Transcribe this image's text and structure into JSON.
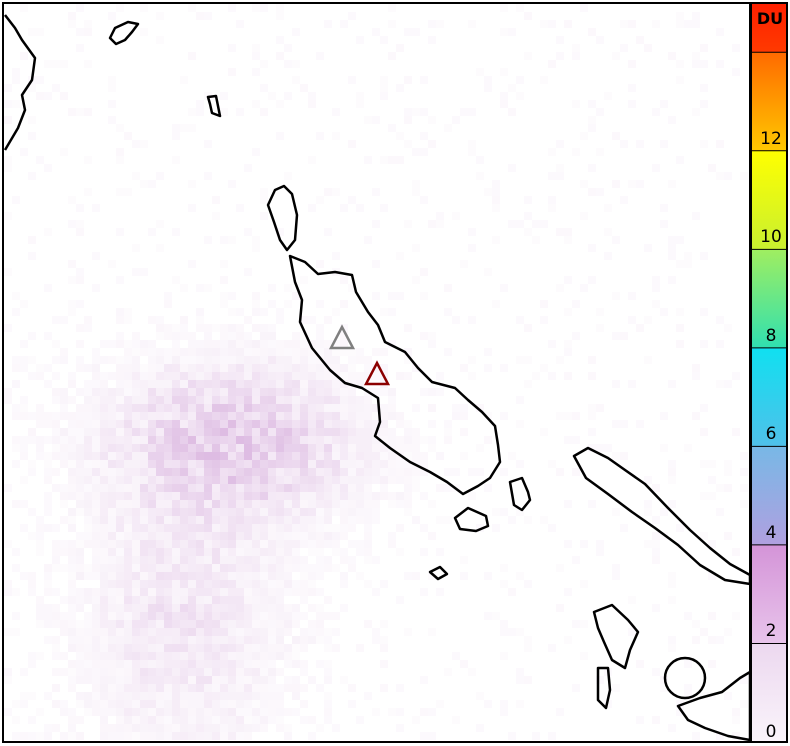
{
  "colorbar": {
    "unit": "DU",
    "ticks": [
      "0",
      "2",
      "4",
      "6",
      "8",
      "10",
      "12"
    ],
    "range": [
      0,
      15
    ],
    "segments": [
      {
        "from": 0,
        "to": 2,
        "color_top": "#ecd8ef",
        "color_bottom": "#faf4fb"
      },
      {
        "from": 2,
        "to": 4,
        "color_top": "#d494d8",
        "color_bottom": "#e8c4eb"
      },
      {
        "from": 4,
        "to": 6,
        "color_top": "#78b8e6",
        "color_bottom": "#b0a0e0"
      },
      {
        "from": 6,
        "to": 8,
        "color_top": "#10e0f0",
        "color_bottom": "#50c0ea"
      },
      {
        "from": 8,
        "to": 10,
        "color_top": "#a0ee60",
        "color_bottom": "#30e0b0"
      },
      {
        "from": 10,
        "to": 12,
        "color_top": "#ffff00",
        "color_bottom": "#c8f030"
      },
      {
        "from": 12,
        "to": 14,
        "color_top": "#ff6a00",
        "color_bottom": "#ffc800"
      },
      {
        "from": 14,
        "to": 15,
        "color_top": "#ff2000",
        "color_bottom": "#ff3a00"
      }
    ]
  },
  "markers": [
    {
      "name": "volcano-marker-gray",
      "color": "#808080"
    },
    {
      "name": "volcano-marker-red",
      "color": "#8b0000"
    }
  ],
  "plume_color": "#c890d0"
}
